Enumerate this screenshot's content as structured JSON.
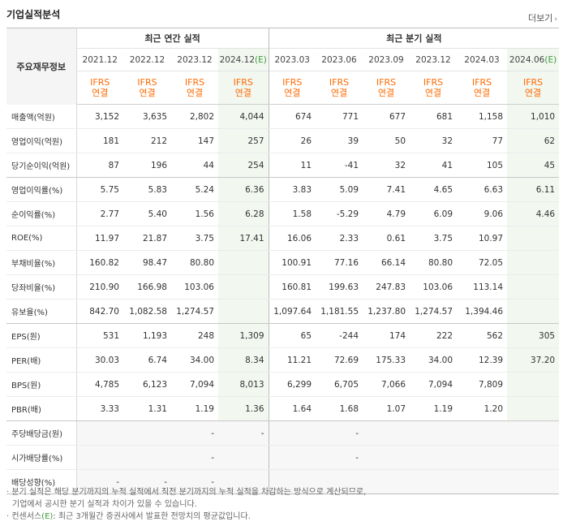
{
  "title": "기업실적분석",
  "more_label": "더보기",
  "row_header_label": "주요재무정보",
  "group_annual": "최근 연간 실적",
  "group_quarter": "최근 분기 실적",
  "periods": [
    {
      "label": "2021.12",
      "estimate": false
    },
    {
      "label": "2022.12",
      "estimate": false
    },
    {
      "label": "2023.12",
      "estimate": false
    },
    {
      "label": "2024.12",
      "estimate": true
    },
    {
      "label": "2023.03",
      "estimate": false
    },
    {
      "label": "2023.06",
      "estimate": false
    },
    {
      "label": "2023.09",
      "estimate": false
    },
    {
      "label": "2023.12",
      "estimate": false
    },
    {
      "label": "2024.03",
      "estimate": false
    },
    {
      "label": "2024.06",
      "estimate": true
    }
  ],
  "estimate_marker": "(E)",
  "standard_line1": "IFRS",
  "standard_line2": "연결",
  "rows": [
    {
      "label": "매출액(억원)",
      "values": [
        "3,152",
        "3,635",
        "2,802",
        "4,044",
        "674",
        "771",
        "677",
        "681",
        "1,158",
        "1,010"
      ]
    },
    {
      "label": "영업이익(억원)",
      "values": [
        "181",
        "212",
        "147",
        "257",
        "26",
        "39",
        "50",
        "32",
        "77",
        "62"
      ]
    },
    {
      "label": "당기순이익(억원)",
      "values": [
        "87",
        "196",
        "44",
        "254",
        "11",
        "-41",
        "32",
        "41",
        "105",
        "45"
      ]
    },
    {
      "label": "영업이익률(%)",
      "values": [
        "5.75",
        "5.83",
        "5.24",
        "6.36",
        "3.83",
        "5.09",
        "7.41",
        "4.65",
        "6.63",
        "6.11"
      ]
    },
    {
      "label": "순이익률(%)",
      "values": [
        "2.77",
        "5.40",
        "1.56",
        "6.28",
        "1.58",
        "-5.29",
        "4.79",
        "6.09",
        "9.06",
        "4.46"
      ]
    },
    {
      "label": "ROE(%)",
      "values": [
        "11.97",
        "21.87",
        "3.75",
        "17.41",
        "16.06",
        "2.33",
        "0.61",
        "3.75",
        "10.97",
        ""
      ]
    },
    {
      "label": "부채비율(%)",
      "values": [
        "160.82",
        "98.47",
        "80.80",
        "",
        "100.91",
        "77.16",
        "66.14",
        "80.80",
        "72.05",
        ""
      ]
    },
    {
      "label": "당좌비율(%)",
      "values": [
        "210.90",
        "166.98",
        "103.06",
        "",
        "160.81",
        "199.63",
        "247.83",
        "103.06",
        "113.14",
        ""
      ]
    },
    {
      "label": "유보율(%)",
      "values": [
        "842.70",
        "1,082.58",
        "1,274.57",
        "",
        "1,097.64",
        "1,181.55",
        "1,237.80",
        "1,274.57",
        "1,394.46",
        ""
      ]
    },
    {
      "label": "EPS(원)",
      "values": [
        "531",
        "1,193",
        "248",
        "1,309",
        "65",
        "-244",
        "174",
        "222",
        "562",
        "305"
      ]
    },
    {
      "label": "PER(배)",
      "values": [
        "30.03",
        "6.74",
        "34.00",
        "8.34",
        "11.21",
        "72.69",
        "175.33",
        "34.00",
        "12.39",
        "37.20"
      ]
    },
    {
      "label": "BPS(원)",
      "values": [
        "4,785",
        "6,123",
        "7,094",
        "8,013",
        "6,299",
        "6,705",
        "7,066",
        "7,094",
        "7,809",
        ""
      ]
    },
    {
      "label": "PBR(배)",
      "values": [
        "3.33",
        "1.31",
        "1.19",
        "1.36",
        "1.64",
        "1.68",
        "1.07",
        "1.19",
        "1.20",
        ""
      ]
    },
    {
      "label": "주당배당금(원)",
      "values": [
        "",
        "",
        "-",
        "-",
        "",
        "-",
        "",
        "",
        "",
        ""
      ]
    },
    {
      "label": "시가배당률(%)",
      "values": [
        "",
        "",
        "-",
        "",
        "",
        "-",
        "",
        "",
        "",
        ""
      ]
    },
    {
      "label": "배당성향(%)",
      "values": [
        "-",
        "-",
        "-",
        "",
        "",
        "",
        "",
        "",
        "",
        ""
      ]
    }
  ],
  "notes": {
    "line1": "· 분기 실적은 해당 분기까지의 누적 실적에서 직전 분기까지의 누적 실적을 차감하는 방식으로 계산되므로,",
    "line2": "기업에서 공시한 분기 실적과 차이가 있을 수 있습니다.",
    "line3_prefix": "· 컨센서스",
    "line3_marker": "(E)",
    "line3_suffix": ": 최근 3개월간 증권사에서 발표한 전망치의 평균값입니다."
  },
  "colors": {
    "ifrs": "#ff6a00",
    "negative": "#e8161b",
    "estimate_marker": "#3a9b3a"
  }
}
